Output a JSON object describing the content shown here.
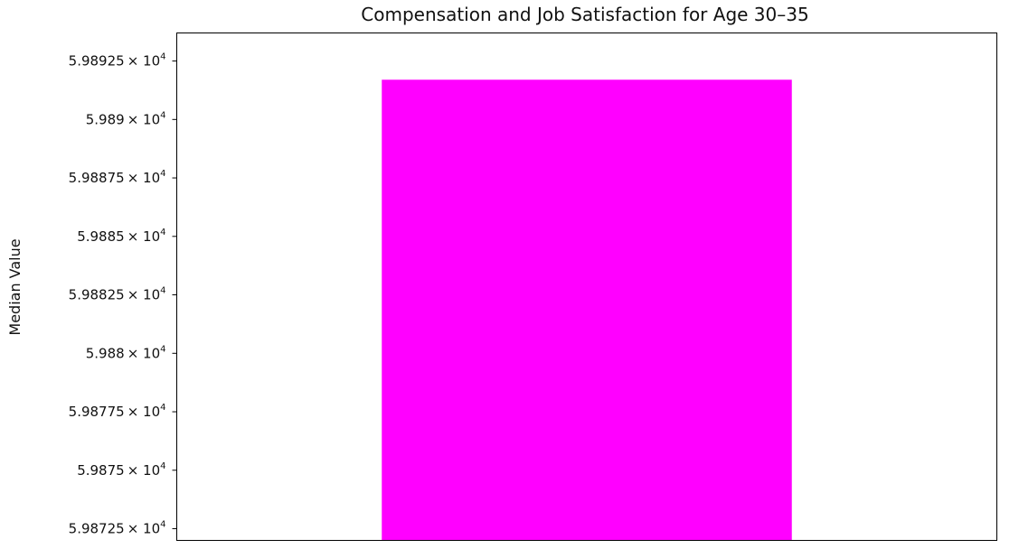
{
  "chart_data": {
    "type": "bar",
    "title": "Compensation and Job Satisfaction for Age 30–35",
    "xlabel": "",
    "ylabel": "Median Value",
    "categories": [
      ""
    ],
    "values": [
      59891.7
    ],
    "ylim": [
      59872.0,
      59893.7
    ],
    "yscale": "log",
    "y_ticks": [
      {
        "value": 59872.5,
        "mantissa": "5.98725",
        "base": "× 10",
        "exponent": "4"
      },
      {
        "value": 59875.0,
        "mantissa": "5.9875",
        "base": "× 10",
        "exponent": "4"
      },
      {
        "value": 59877.5,
        "mantissa": "5.98775",
        "base": "× 10",
        "exponent": "4"
      },
      {
        "value": 59880.0,
        "mantissa": "5.988",
        "base": "× 10",
        "exponent": "4"
      },
      {
        "value": 59882.5,
        "mantissa": "5.98825",
        "base": "× 10",
        "exponent": "4"
      },
      {
        "value": 59885.0,
        "mantissa": "5.9885",
        "base": "× 10",
        "exponent": "4"
      },
      {
        "value": 59887.5,
        "mantissa": "5.98875",
        "base": "× 10",
        "exponent": "4"
      },
      {
        "value": 59890.0,
        "mantissa": "5.989",
        "base": "× 10",
        "exponent": "4"
      },
      {
        "value": 59892.5,
        "mantissa": "5.98925",
        "base": "× 10",
        "exponent": "4"
      }
    ],
    "grid": false,
    "legend": "none",
    "colors": {
      "bar": "#ff00ff",
      "axes": "#000000",
      "text": "#111111"
    }
  }
}
